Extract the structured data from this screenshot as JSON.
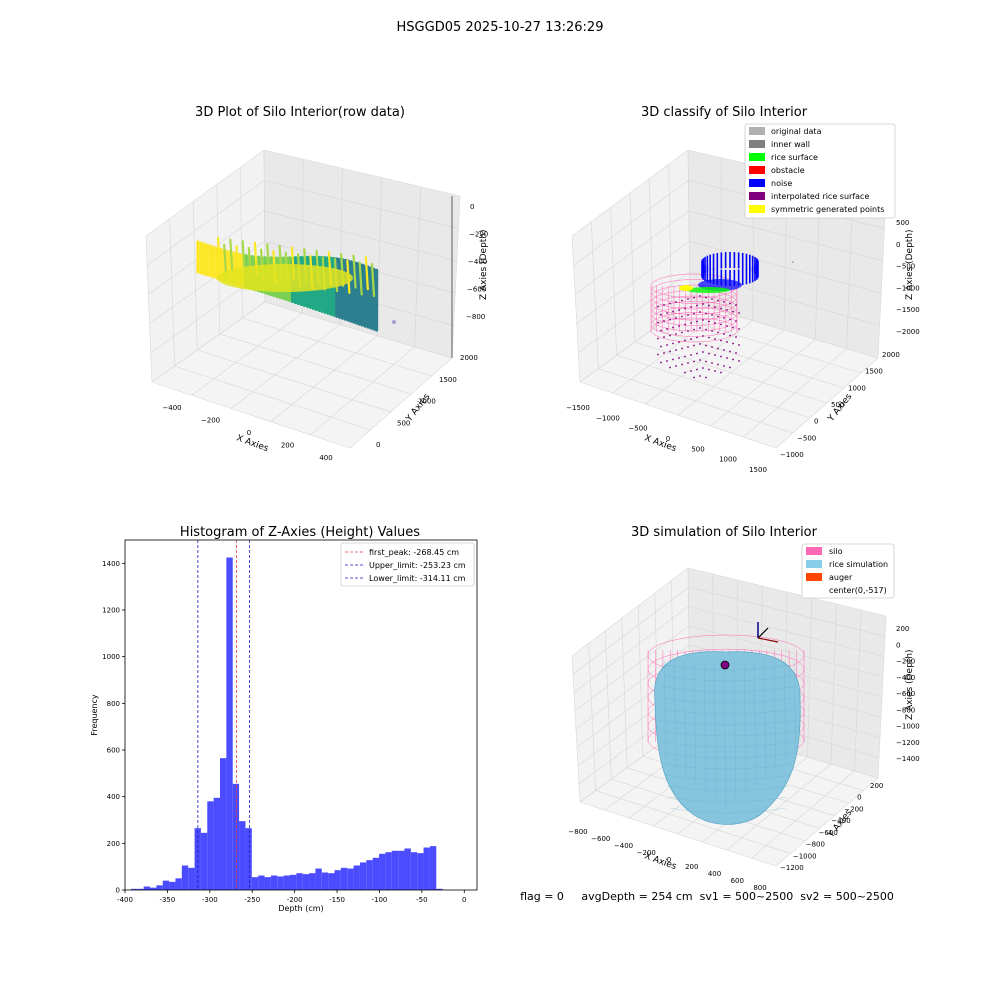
{
  "suptitle": "HSGGD05 2025-10-27 13:26:29",
  "status_line": "flag = 0     avgDepth = 254 cm  sv1 = 500~2500  sv2 = 500~2500",
  "colors": {
    "pane_left": "#f2f2f2",
    "pane_right": "#e9e9e9",
    "pane_floor": "#f4f4f4",
    "grid": "#d6d6d6",
    "hist_bar": "#4b4bff",
    "peak_line": "#e03c3c",
    "limit_line": "#1d1dbf",
    "silo_wire": "#ff69b4",
    "rice": "#87c5df",
    "rice_edge": "#5ea9c8",
    "noise": "#0000ff",
    "rice_surface": "#00ff00",
    "obstacle": "#ff0000",
    "interp": "#800080",
    "symmetric": "#ffff00"
  },
  "chart_data": [
    {
      "type": "scatter3d",
      "title": "3D Plot of Silo Interior(row data)",
      "xlabel": "X Axies",
      "ylabel": "Y Axies",
      "zlabel": "Z Axies (Depth)",
      "xticks": [
        "−400",
        "−200",
        "0",
        "200",
        "400"
      ],
      "yticks": [
        "0",
        "500",
        "1000",
        "1500",
        "2000"
      ],
      "zticks": [
        "0",
        "−200",
        "−400",
        "−600",
        "−800"
      ],
      "xlim": [
        -500,
        500
      ],
      "ylim": [
        -100,
        2100
      ],
      "zlim": [
        -950,
        0
      ],
      "colormap": [
        "#2c7f8e",
        "#22a884",
        "#7ad151",
        "#fde725"
      ],
      "note_series": "point cloud coloured by depth"
    },
    {
      "type": "scatter3d",
      "title": "3D classify of Silo Interior",
      "xlabel": "X Axies",
      "ylabel": "Y Axies",
      "zlabel": "Z Axies (Depth)",
      "xticks": [
        "−1500",
        "−1000",
        "−500",
        "0",
        "500",
        "1000",
        "1500"
      ],
      "yticks": [
        "−1000",
        "−500",
        "0",
        "500",
        "1000",
        "1500",
        "2000"
      ],
      "zticks": [
        "500",
        "0",
        "−500",
        "−1000",
        "−1500",
        "−2000"
      ],
      "legend": [
        {
          "label": "original data",
          "color": "#b0b0b0"
        },
        {
          "label": "inner wall",
          "color": "#808080"
        },
        {
          "label": "rice surface",
          "color": "#00ff00"
        },
        {
          "label": "obstacle",
          "color": "#ff0000"
        },
        {
          "label": "noise",
          "color": "#0000ff"
        },
        {
          "label": "interpolated rice surface",
          "color": "#800080"
        },
        {
          "label": "symmetric generated points",
          "color": "#ffff00"
        }
      ],
      "legend_position": "top-right"
    },
    {
      "type": "bar",
      "title": "Histogram of Z-Axies (Height) Values",
      "xlabel": "Depth (cm)",
      "ylabel": "Frequency",
      "xlim": [
        -400,
        15
      ],
      "ylim": [
        0,
        1500
      ],
      "xticks": [
        -400,
        -350,
        -300,
        -250,
        -200,
        -150,
        -100,
        -50,
        0
      ],
      "yticks": [
        0,
        200,
        400,
        600,
        800,
        1000,
        1200,
        1400
      ],
      "bin_width": 7.5,
      "bin_start": -393,
      "values": [
        5,
        5,
        15,
        10,
        20,
        40,
        35,
        50,
        105,
        95,
        265,
        245,
        380,
        395,
        565,
        1425,
        455,
        295,
        265,
        55,
        62,
        55,
        62,
        58,
        62,
        65,
        72,
        68,
        72,
        92,
        75,
        72,
        85,
        95,
        92,
        105,
        118,
        128,
        138,
        155,
        162,
        168,
        168,
        178,
        162,
        158,
        182,
        188,
        5
      ],
      "vlines": [
        {
          "label": "first_peak: -268.45 cm",
          "x": -268.45,
          "color": "#e03c3c"
        },
        {
          "label": "Upper_limit: -253.23 cm",
          "x": -253.23,
          "color": "#1d1dbf"
        },
        {
          "label": "Lower_limit: -314.11 cm",
          "x": -314.11,
          "color": "#1d1dbf"
        }
      ],
      "legend_position": "top-right"
    },
    {
      "type": "surface3d",
      "title": "3D simulation of Silo Interior",
      "xlabel": "X Axies",
      "ylabel": "Y Axies",
      "zlabel": "Z Axies (Depth)",
      "xticks": [
        "−800",
        "−600",
        "−400",
        "−200",
        "0",
        "200",
        "400",
        "600",
        "800"
      ],
      "yticks": [
        "200",
        "0",
        "−200",
        "−400",
        "−600",
        "−800",
        "−1000",
        "−1200"
      ],
      "zticks": [
        "200",
        "0",
        "−200",
        "−400",
        "−600",
        "−800",
        "−1000",
        "−1200",
        "−1400"
      ],
      "legend": [
        {
          "label": "silo",
          "color": "#ff69b4"
        },
        {
          "label": "rice simulation",
          "color": "#87ceeb"
        },
        {
          "label": "auger",
          "color": "#ff4500"
        },
        {
          "label": "center(0,-517)",
          "color": ""
        }
      ],
      "legend_position": "top-right"
    }
  ]
}
